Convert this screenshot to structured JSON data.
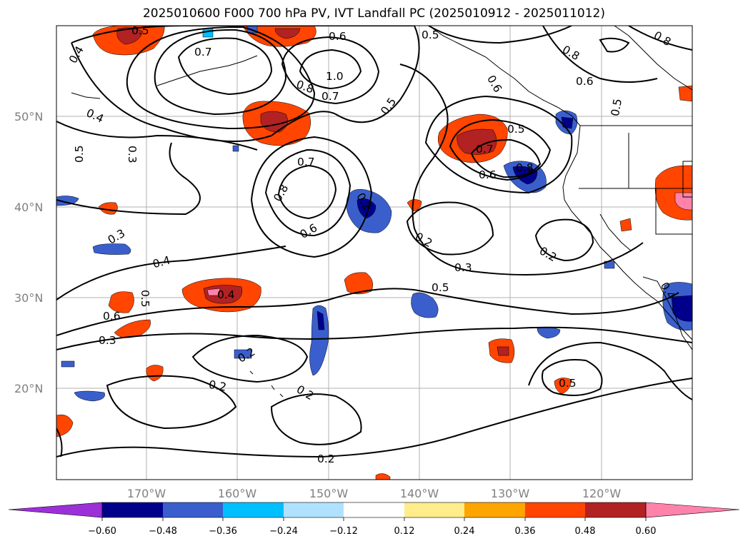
{
  "title": "2025010600 F000 700 hPa PV, IVT Landfall PC (2025010912 - 2025011012)",
  "map": {
    "lat_labels": [
      "50°N",
      "40°N",
      "30°N",
      "20°N"
    ],
    "lon_labels": [
      "170°W",
      "160°W",
      "150°W",
      "140°W",
      "130°W",
      "120°W"
    ],
    "contour_labels": [
      "0.5",
      "0.4",
      "0.7",
      "0.6",
      "0.5",
      "1.0",
      "0.8",
      "0.7",
      "0.5",
      "0.8",
      "0.6",
      "0.8",
      "0.6",
      "0.5",
      "0.4",
      "0.5",
      "0.3",
      "0.7",
      "0.8",
      "0.6",
      "0.4",
      "0.5",
      "0.7",
      "0.6",
      "0.8",
      "0.3",
      "0.4",
      "0.5",
      "0.6",
      "0.3",
      "0.2",
      "0.2",
      "0.2",
      "0.3",
      "0.5",
      "0.2",
      "0.2",
      "0.2",
      "0.5",
      "0.2",
      "0.4"
    ],
    "fill_colors": {
      "purple": "#9b30d9",
      "navy": "#00008b",
      "blue": "#3a5fcd",
      "cyan": "#00bfff",
      "lightblue": "#b0e2ff",
      "yellow": "#ffec8b",
      "orange": "#ffa500",
      "redorange": "#ff4500",
      "firebrick": "#b22222",
      "pink": "#ff82ab"
    }
  },
  "colorbar": {
    "ticks": [
      "−0.60",
      "−0.48",
      "−0.36",
      "−0.24",
      "−0.12",
      "0.12",
      "0.24",
      "0.36",
      "0.48",
      "0.60"
    ],
    "colors": [
      "#9b30d9",
      "#00008b",
      "#3a5fcd",
      "#00bfff",
      "#b0e2ff",
      "#ffffff",
      "#ffec8b",
      "#ffa500",
      "#ff4500",
      "#b22222",
      "#ff82ab"
    ]
  }
}
